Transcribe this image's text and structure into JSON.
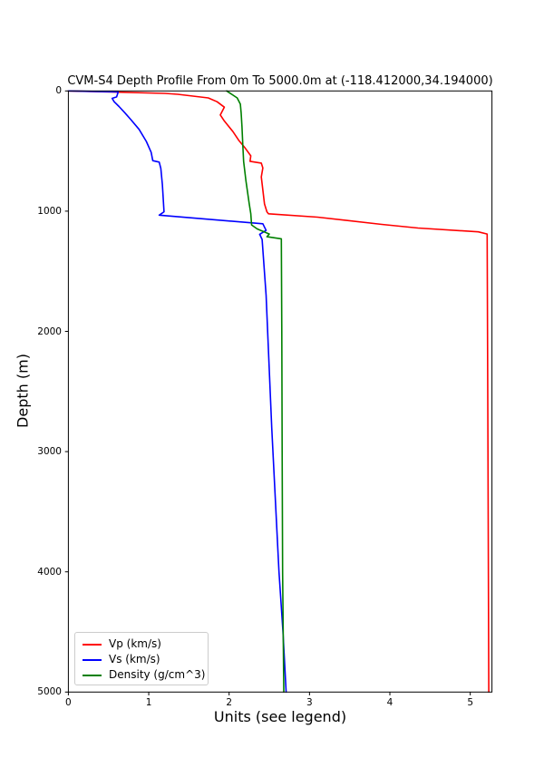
{
  "figure": {
    "title": "CVM-S4 Depth Profile From 0m To 5000.0m at (-118.412000,34.194000)",
    "xlabel": "Units (see legend)",
    "ylabel": "Depth (m)",
    "background_color": "#ffffff",
    "spine_color": "#000000"
  },
  "chart_data": {
    "type": "line",
    "title": "CVM-S4 Depth Profile From 0m To 5000.0m at (-118.412000,34.194000)",
    "xlabel": "Units (see legend)",
    "ylabel": "Depth (m)",
    "xlim": [
      0,
      5.27
    ],
    "ylim": [
      0,
      5000
    ],
    "y_inverted": true,
    "grid": false,
    "legend_position": "lower left",
    "x_ticks": [
      0,
      1,
      2,
      3,
      4,
      5
    ],
    "y_ticks": [
      0,
      1000,
      2000,
      3000,
      4000,
      5000
    ],
    "series": [
      {
        "name": "Vp (km/s)",
        "color": "#ff0000",
        "points_format": "[value_km_s, depth_m]",
        "points": [
          [
            0,
            0
          ],
          [
            1.2,
            20
          ],
          [
            1.36,
            28
          ],
          [
            1.74,
            58
          ],
          [
            1.85,
            90
          ],
          [
            1.94,
            135
          ],
          [
            1.89,
            200
          ],
          [
            1.94,
            250
          ],
          [
            2.05,
            340
          ],
          [
            2.12,
            410
          ],
          [
            2.2,
            475
          ],
          [
            2.27,
            540
          ],
          [
            2.26,
            585
          ],
          [
            2.4,
            600
          ],
          [
            2.42,
            640
          ],
          [
            2.4,
            715
          ],
          [
            2.44,
            940
          ],
          [
            2.47,
            1005
          ],
          [
            2.49,
            1022
          ],
          [
            3.1,
            1050
          ],
          [
            3.9,
            1110
          ],
          [
            4.35,
            1140
          ],
          [
            5.1,
            1172
          ],
          [
            5.21,
            1190
          ],
          [
            5.22,
            3000
          ],
          [
            5.23,
            5000
          ]
        ]
      },
      {
        "name": "Vs (km/s)",
        "color": "#0000ff",
        "points_format": "[value_km_s, depth_m]",
        "points": [
          [
            0,
            0
          ],
          [
            0.62,
            8
          ],
          [
            0.6,
            50
          ],
          [
            0.545,
            62
          ],
          [
            0.57,
            90
          ],
          [
            0.63,
            130
          ],
          [
            0.7,
            180
          ],
          [
            0.78,
            240
          ],
          [
            0.88,
            320
          ],
          [
            0.97,
            420
          ],
          [
            1.03,
            510
          ],
          [
            1.05,
            580
          ],
          [
            1.13,
            592
          ],
          [
            1.15,
            645
          ],
          [
            1.17,
            780
          ],
          [
            1.19,
            1005
          ],
          [
            1.13,
            1033
          ],
          [
            2.42,
            1105
          ],
          [
            2.46,
            1160
          ],
          [
            2.38,
            1192
          ],
          [
            2.41,
            1235
          ],
          [
            2.46,
            1700
          ],
          [
            2.53,
            2800
          ],
          [
            2.62,
            4000
          ],
          [
            2.67,
            4500
          ],
          [
            2.71,
            5000
          ]
        ]
      },
      {
        "name": "Density (g/cm^3)",
        "color": "#008000",
        "points_format": "[value_g_cm3, depth_m]",
        "points": [
          [
            1.97,
            0
          ],
          [
            2.1,
            58
          ],
          [
            2.14,
            110
          ],
          [
            2.15,
            185
          ],
          [
            2.16,
            300
          ],
          [
            2.17,
            450
          ],
          [
            2.18,
            586
          ],
          [
            2.21,
            750
          ],
          [
            2.25,
            940
          ],
          [
            2.27,
            1020
          ],
          [
            2.28,
            1115
          ],
          [
            2.35,
            1148
          ],
          [
            2.5,
            1190
          ],
          [
            2.47,
            1213
          ],
          [
            2.65,
            1230
          ],
          [
            2.655,
            2000
          ],
          [
            2.66,
            3000
          ],
          [
            2.665,
            4000
          ],
          [
            2.68,
            5000
          ]
        ]
      }
    ]
  }
}
